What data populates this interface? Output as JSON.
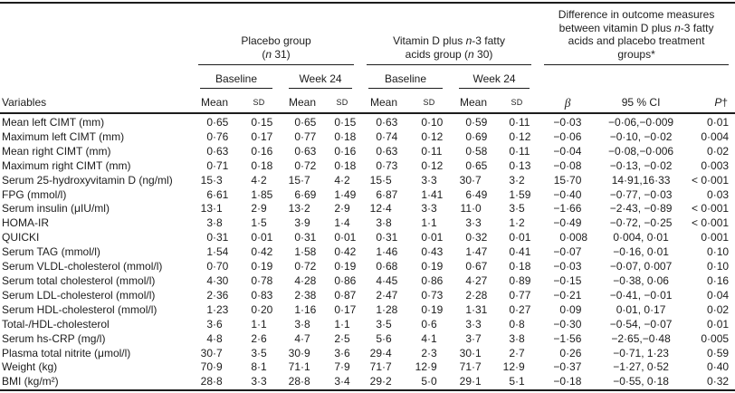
{
  "table": {
    "header": {
      "variables_label": "Variables",
      "placebo_group": {
        "line1": "Placebo group",
        "line2_open": "(",
        "line2_n": "n",
        "line2_close": " 31)"
      },
      "vitd_group": {
        "line1_pre": "Vitamin D plus ",
        "line1_n": "n",
        "line1_post": "-3 fatty",
        "line2_pre": "acids group (",
        "line2_n": "n",
        "line2_post": " 30)"
      },
      "difference_group": {
        "line1": "Difference in outcome measures",
        "line2_pre": "between vitamin D plus ",
        "line2_n": "n",
        "line2_post": "-3 fatty",
        "line3": "acids and placebo treatment",
        "line4": "groups*"
      },
      "subheaders": {
        "baseline": "Baseline",
        "week24": "Week 24"
      },
      "stat_headers": {
        "mean": "Mean",
        "sd": "SD"
      },
      "beta": "β",
      "ci": "95 % CI",
      "p_italic": "P",
      "p_dagger": "†"
    },
    "rows": [
      {
        "label": "Mean left CIMT (mm)",
        "values": [
          "0·65",
          "0·15",
          "0·65",
          "0·15",
          "0·63",
          "0·10",
          "0·59",
          "0·11",
          "−0·03",
          "−0·06,−0·009",
          "0·01"
        ]
      },
      {
        "label": "Maximum left CIMT (mm)",
        "values": [
          "0·76",
          "0·17",
          "0·77",
          "0·18",
          "0·74",
          "0·12",
          "0·69",
          "0·12",
          "−0·06",
          "−0·10, −0·02",
          "0·004"
        ]
      },
      {
        "label": "Mean right CIMT (mm)",
        "values": [
          "0·63",
          "0·16",
          "0·63",
          "0·16",
          "0·63",
          "0·11",
          "0·58",
          "0·11",
          "−0·04",
          "−0·08,−0·006",
          "0·02"
        ]
      },
      {
        "label": "Maximum right CIMT (mm)",
        "values": [
          "0·71",
          "0·18",
          "0·72",
          "0·18",
          "0·73",
          "0·12",
          "0·65",
          "0·13",
          "−0·08",
          "−0·13, −0·02",
          "0·003"
        ]
      },
      {
        "label": "Serum 25-hydroxyvitamin D (ng/ml)",
        "values": [
          "15·3",
          "4·2",
          "15·7",
          "4·2",
          "15·5",
          "3·3",
          "30·7",
          "3·2",
          "15·70",
          "14·91,16·33",
          "< 0·001"
        ]
      },
      {
        "label": "FPG (mmol/l)",
        "values": [
          "6·61",
          "1·85",
          "6·69",
          "1·49",
          "6·87",
          "1·41",
          "6·49",
          "1·59",
          "−0·40",
          "−0·77, −0·03",
          "0·03"
        ]
      },
      {
        "label": "Serum insulin (μIU/ml)",
        "values": [
          "13·1",
          "2·9",
          "13·2",
          "2·9",
          "12·4",
          "3·3",
          "11·0",
          "3·5",
          "−1·66",
          "−2·43, −0·89",
          "< 0·001"
        ]
      },
      {
        "label": "HOMA-IR",
        "values": [
          "3·8",
          "1·5",
          "3·9",
          "1·4",
          "3·8",
          "1·1",
          "3·3",
          "1·2",
          "−0·49",
          "−0·72, −0·25",
          "< 0·001"
        ]
      },
      {
        "label": "QUICKI",
        "values": [
          "0·31",
          "0·01",
          "0·31",
          "0·01",
          "0·31",
          "0·01",
          "0·32",
          "0·01",
          "0·008",
          "0·004, 0·01",
          "0·001"
        ]
      },
      {
        "label": "Serum TAG (mmol/l)",
        "values": [
          "1·54",
          "0·42",
          "1·58",
          "0·42",
          "1·46",
          "0·43",
          "1·47",
          "0·41",
          "−0·07",
          "−0·16, 0·01",
          "0·10"
        ]
      },
      {
        "label": "Serum VLDL-cholesterol (mmol/l)",
        "values": [
          "0·70",
          "0·19",
          "0·72",
          "0·19",
          "0·68",
          "0·19",
          "0·67",
          "0·18",
          "−0·03",
          "−0·07, 0·007",
          "0·10"
        ]
      },
      {
        "label": "Serum total cholesterol (mmol/l)",
        "values": [
          "4·30",
          "0·78",
          "4·28",
          "0·86",
          "4·45",
          "0·86",
          "4·27",
          "0·89",
          "−0·15",
          "−0·38, 0·06",
          "0·16"
        ]
      },
      {
        "label": "Serum LDL-cholesterol (mmol/l)",
        "values": [
          "2·36",
          "0·83",
          "2·38",
          "0·87",
          "2·47",
          "0·73",
          "2·28",
          "0·77",
          "−0·21",
          "−0·41, −0·01",
          "0·04"
        ]
      },
      {
        "label": "Serum HDL-cholesterol (mmol/l)",
        "values": [
          "1·23",
          "0·20",
          "1·16",
          "0·17",
          "1·28",
          "0·19",
          "1·31",
          "0·27",
          "0·09",
          "0·01, 0·17",
          "0·02"
        ]
      },
      {
        "label": "Total-/HDL-cholesterol",
        "values": [
          "3·6",
          "1·1",
          "3·8",
          "1·1",
          "3·5",
          "0·6",
          "3·3",
          "0·8",
          "−0·30",
          "−0·54, −0·07",
          "0·01"
        ]
      },
      {
        "label": "Serum hs-CRP (mg/l)",
        "values": [
          "4·8",
          "2·6",
          "4·7",
          "2·5",
          "5·6",
          "4·1",
          "3·7",
          "3·8",
          "−1·56",
          "−2·65,−0·48",
          "0·005"
        ]
      },
      {
        "label": "Plasma total nitrite (μmol/l)",
        "values": [
          "30·7",
          "3·5",
          "30·9",
          "3·6",
          "29·4",
          "2·3",
          "30·1",
          "2·7",
          "0·26",
          "−0·71, 1·23",
          "0·59"
        ]
      },
      {
        "label": "Weight (kg)",
        "values": [
          "70·9",
          "8·1",
          "71·1",
          "7·9",
          "71·7",
          "12·9",
          "71·7",
          "12·9",
          "−0·37",
          "−1·27, 0·52",
          "0·40"
        ]
      },
      {
        "label": "BMI (kg/m²)",
        "values": [
          "28·8",
          "3·3",
          "28·8",
          "3·4",
          "29·2",
          "5·0",
          "29·1",
          "5·1",
          "−0·18",
          "−0·55, 0·18",
          "0·32"
        ]
      }
    ]
  }
}
